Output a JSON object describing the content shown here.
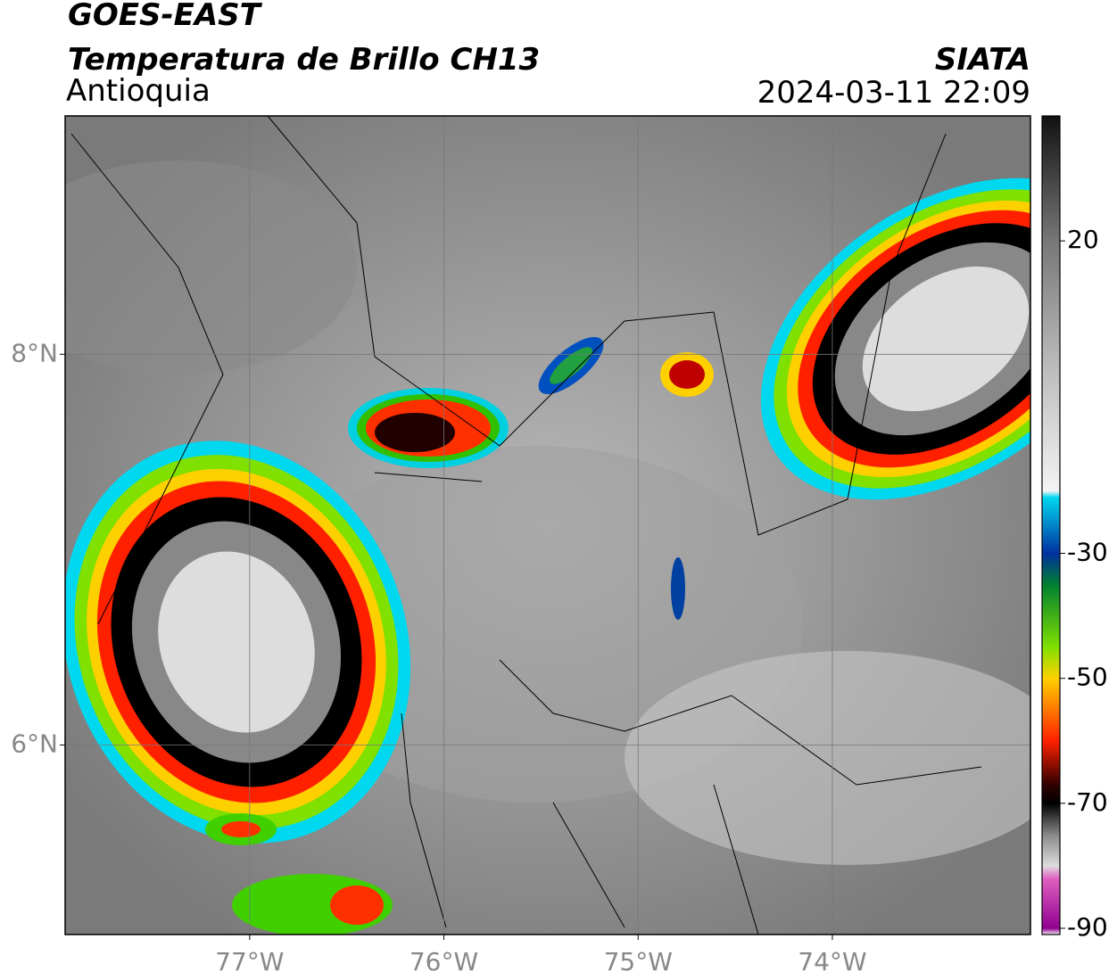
{
  "header": {
    "title": "GOES-EAST",
    "subtitle": "Temperatura de Brillo CH13",
    "region": "Antioquia",
    "source": "SIATA",
    "datetime": "2024-03-11 22:09"
  },
  "chart_data": {
    "type": "map",
    "xlim": [
      -77.95,
      -72.98
    ],
    "ylim": [
      5.03,
      9.22
    ],
    "xticks": [
      {
        "value": -77,
        "label": "77°W"
      },
      {
        "value": -76,
        "label": "76°W"
      },
      {
        "value": -75,
        "label": "75°W"
      },
      {
        "value": -74,
        "label": "74°W"
      }
    ],
    "yticks": [
      {
        "value": 6,
        "label": "6°N"
      },
      {
        "value": 8,
        "label": "8°N"
      }
    ],
    "grid": true,
    "colorbar": {
      "lim": [
        -91,
        40
      ],
      "ticks": [
        20,
        -30,
        -50,
        -70,
        -90
      ],
      "stops": [
        {
          "value": 40,
          "color": "#111111"
        },
        {
          "value": 30,
          "color": "#444444"
        },
        {
          "value": 20,
          "color": "#777777"
        },
        {
          "value": 0,
          "color": "#bbbbbb"
        },
        {
          "value": -20,
          "color": "#f4f4f4"
        },
        {
          "value": -21,
          "color": "#00d8f0"
        },
        {
          "value": -30,
          "color": "#0030a0"
        },
        {
          "value": -35,
          "color": "#008030"
        },
        {
          "value": -45,
          "color": "#80e000"
        },
        {
          "value": -50,
          "color": "#ffd000"
        },
        {
          "value": -60,
          "color": "#ff2000"
        },
        {
          "value": -67,
          "color": "#300000"
        },
        {
          "value": -70,
          "color": "#000000"
        },
        {
          "value": -75,
          "color": "#888888"
        },
        {
          "value": -80,
          "color": "#dddddd"
        },
        {
          "value": -82,
          "color": "#e060c0"
        },
        {
          "value": -90,
          "color": "#900090"
        },
        {
          "value": -91,
          "color": "#ffffff"
        }
      ]
    }
  }
}
